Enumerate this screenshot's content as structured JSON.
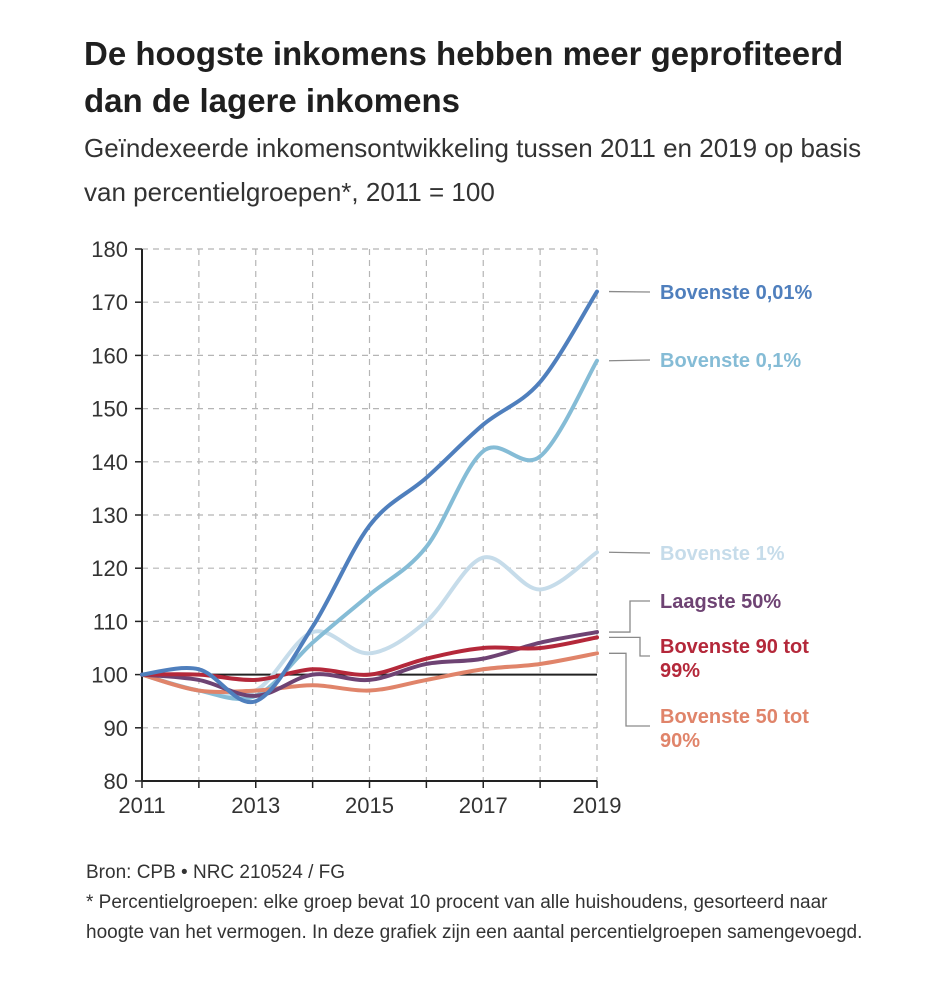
{
  "title": "De hoogste inkomens hebben meer geprofiteerd dan de lagere inkomens",
  "subtitle": "Geïndexeerde inkomensontwikkeling tussen 2011 en 2019 op basis van percentielgroepen*, 2011 = 100",
  "footer": {
    "source": "Bron: CPB • NRC 210524 / FG",
    "note": "* Percentielgroepen: elke groep bevat 10 procent van alle huishoudens, gesorteerd naar hoogte van het vermogen. In deze grafiek zijn een aantal percentielgroepen samengevoegd."
  },
  "chart_data": {
    "type": "line",
    "title": "De hoogste inkomens hebben meer geprofiteerd dan de lagere inkomens",
    "xlabel": "",
    "ylabel": "",
    "xlim": [
      2011,
      2019
    ],
    "ylim": [
      80,
      180
    ],
    "x_ticks": [
      2011,
      2013,
      2015,
      2017,
      2019
    ],
    "x_tick_labels": [
      "2011",
      "2013",
      "2015",
      "2017",
      "2019"
    ],
    "y_ticks": [
      80,
      90,
      100,
      110,
      120,
      130,
      140,
      150,
      160,
      170,
      180
    ],
    "y_tick_labels": [
      "80",
      "90",
      "100",
      "110",
      "120",
      "130",
      "140",
      "150",
      "160",
      "170",
      "180"
    ],
    "grid": "dashed, vertical every year and horizontal every 10",
    "reference_line": 100,
    "x": [
      2011,
      2012,
      2013,
      2014,
      2015,
      2016,
      2017,
      2018,
      2019
    ],
    "series": [
      {
        "name": "Bovenste 0,01%",
        "color": "#4f7fbd",
        "values": [
          100,
          101,
          95,
          109,
          128,
          137,
          147,
          155,
          172
        ]
      },
      {
        "name": "Bovenste 0,1%",
        "color": "#85bcd6",
        "values": [
          100,
          97,
          96,
          106,
          115,
          124,
          142,
          141,
          159
        ]
      },
      {
        "name": "Bovenste 1%",
        "color": "#c6dcea",
        "values": [
          100,
          97,
          97,
          108,
          104,
          110,
          122,
          116,
          123
        ]
      },
      {
        "name": "Laagste 50%",
        "color": "#6e4373",
        "values": [
          100,
          99,
          96,
          100,
          99,
          102,
          103,
          106,
          108
        ]
      },
      {
        "name": "Bovenste 90 tot 99%",
        "color": "#b4283a",
        "values": [
          100,
          100,
          99,
          101,
          100,
          103,
          105,
          105,
          107
        ]
      },
      {
        "name": "Bovenste 50 tot 90%",
        "color": "#e0846a",
        "values": [
          100,
          97,
          97,
          98,
          97,
          99,
          101,
          102,
          104
        ]
      }
    ],
    "legend": [
      {
        "label": "Bovenste 0,01%",
        "color": "#4f7fbd",
        "series": 0
      },
      {
        "label": "Bovenste 0,1%",
        "color": "#85bcd6",
        "series": 1
      },
      {
        "label": "Bovenste 1%",
        "color": "#c6dcea",
        "series": 2
      },
      {
        "label": "Laagste 50%",
        "color": "#6e4373",
        "series": 3
      },
      {
        "label": "Bovenste 90 tot",
        "label2": "99%",
        "color": "#b4283a",
        "series": 4
      },
      {
        "label": "Bovenste 50 tot",
        "label2": "90%",
        "color": "#e0846a",
        "series": 5
      }
    ],
    "legend_placement": "right, labels beside line ends"
  }
}
